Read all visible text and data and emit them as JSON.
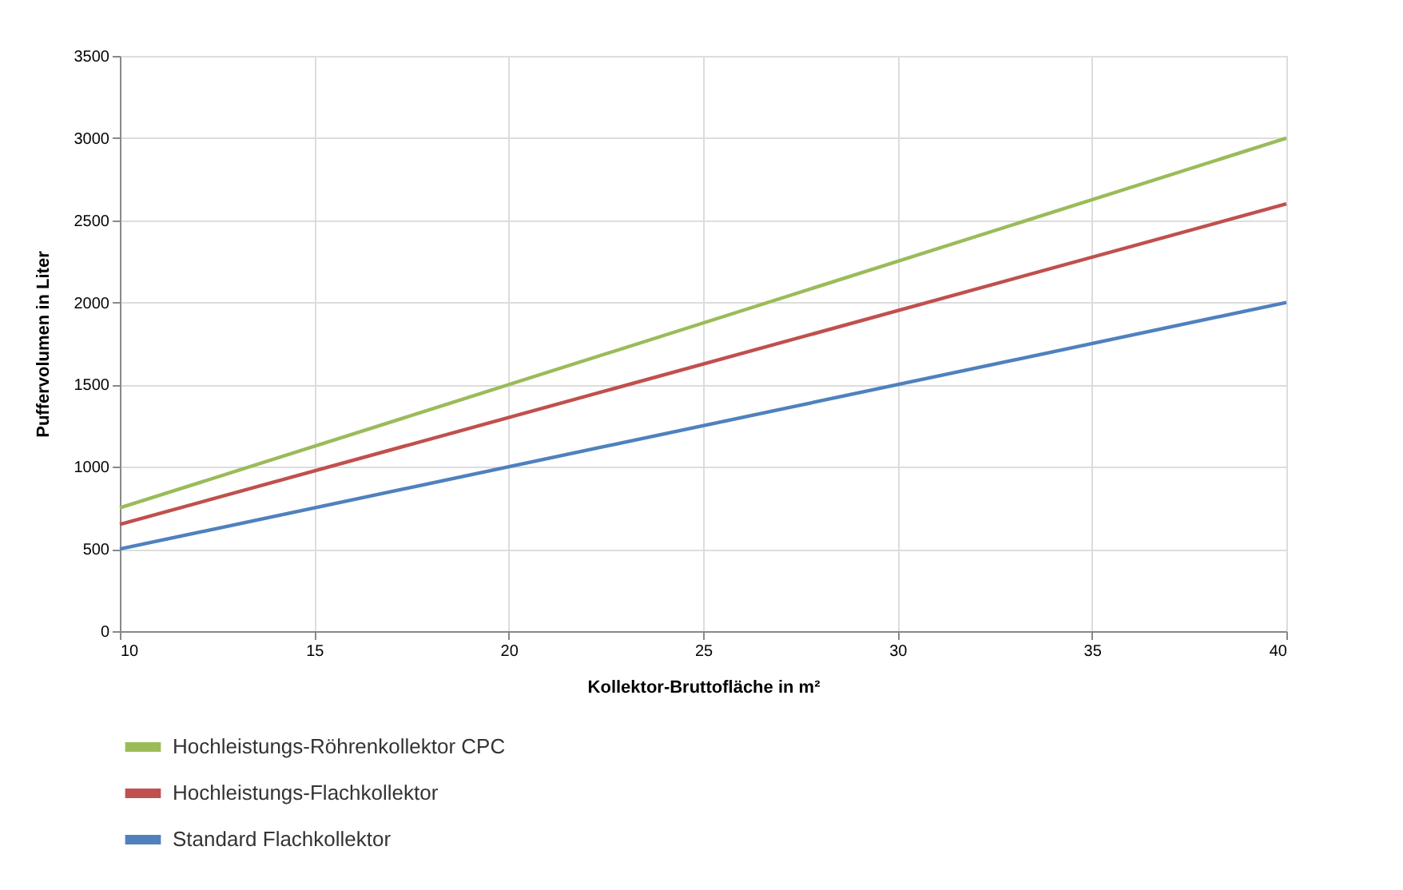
{
  "chart_data": {
    "type": "line",
    "xlabel": "Kollektor-Bruttofläche in m²",
    "ylabel": "Puffervolumen in Liter",
    "x": [
      10,
      40
    ],
    "series": [
      {
        "name": "Hochleistungs-Röhrenkollektor CPC",
        "color": "#9bbb59",
        "values": [
          750,
          3000
        ]
      },
      {
        "name": "Hochleistungs-Flachkollektor",
        "color": "#c0504d",
        "values": [
          650,
          2600
        ]
      },
      {
        "name": "Standard Flachkollektor",
        "color": "#4f81bd",
        "values": [
          500,
          2000
        ]
      }
    ],
    "xlim": [
      10,
      40
    ],
    "xticks": [
      10,
      15,
      20,
      25,
      30,
      35,
      40
    ],
    "ylim": [
      0,
      3500
    ],
    "yticks": [
      0,
      500,
      1000,
      1500,
      2000,
      2500,
      3000,
      3500
    ],
    "grid": true,
    "legend": "bottom left",
    "marker": "none",
    "line_style": "solid"
  }
}
